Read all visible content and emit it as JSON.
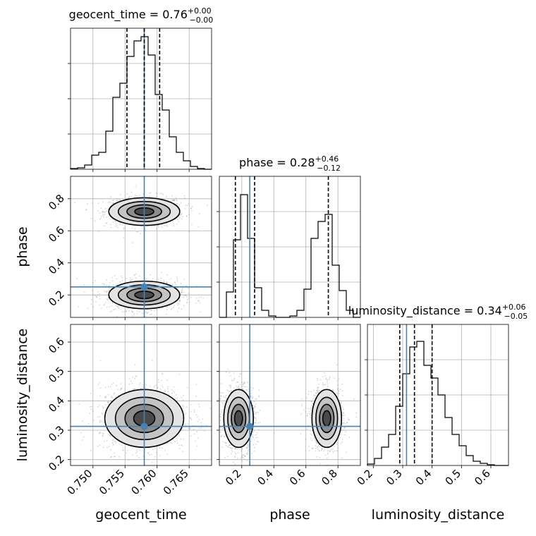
{
  "chart_data": {
    "type": "corner",
    "parameters": [
      {
        "name": "geocent_time",
        "axis_label": "geocent_time",
        "title": "geocent_time = 0.76",
        "median_str": "0.76",
        "err_plus": "+0.00",
        "err_minus": "−0.00",
        "range": [
          0.7465,
          0.7685
        ],
        "ticks": [
          0.75,
          0.755,
          0.76,
          0.765
        ],
        "tick_labels": [
          "0.750",
          "0.755",
          "0.760",
          "0.765"
        ],
        "truth": 0.758,
        "quantiles": [
          0.7553,
          0.758,
          0.7604
        ],
        "hist_heights": [
          0.005,
          0.01,
          0.03,
          0.1,
          0.12,
          0.27,
          0.51,
          0.61,
          0.8,
          0.91,
          0.94,
          0.81,
          0.53,
          0.42,
          0.23,
          0.12,
          0.06,
          0.02,
          0.005,
          0.0
        ]
      },
      {
        "name": "phase",
        "axis_label": "phase",
        "title": "phase = 0.28",
        "median_str": "0.28",
        "err_plus": "+0.46",
        "err_minus": "−0.12",
        "range": [
          0.06,
          0.94
        ],
        "ticks": [
          0.2,
          0.4,
          0.6,
          0.8
        ],
        "tick_labels": [
          "0.2",
          "0.4",
          "0.6",
          "0.8"
        ],
        "truth": 0.25,
        "quantiles": [
          0.16,
          0.28,
          0.74
        ],
        "hist_heights": [
          0.0,
          0.18,
          0.55,
          0.87,
          0.56,
          0.21,
          0.05,
          0.01,
          0.0,
          0.0,
          0.01,
          0.05,
          0.2,
          0.56,
          0.68,
          0.73,
          0.37,
          0.19,
          0.05,
          0.0
        ]
      },
      {
        "name": "luminosity_distance",
        "axis_label": "luminosity_distance",
        "title": "luminosity_distance = 0.34",
        "median_str": "0.34",
        "err_plus": "+0.06",
        "err_minus": "−0.05",
        "range": [
          0.18,
          0.66
        ],
        "ticks": [
          0.2,
          0.3,
          0.4,
          0.5,
          0.6
        ],
        "tick_labels": [
          "0.2",
          "0.3",
          "0.4",
          "0.5",
          "0.6"
        ],
        "truth": 0.313,
        "quantiles": [
          0.29,
          0.34,
          0.4
        ],
        "hist_heights": [
          0.01,
          0.05,
          0.13,
          0.22,
          0.42,
          0.65,
          0.84,
          0.88,
          0.71,
          0.62,
          0.5,
          0.34,
          0.22,
          0.14,
          0.07,
          0.03,
          0.015,
          0.005,
          0.0,
          0.0
        ]
      }
    ],
    "joint": [
      {
        "x": "geocent_time",
        "y": "phase",
        "modes": [
          {
            "cx": 0.758,
            "cy": 0.72,
            "sx": 0.0027,
            "sy": 0.042,
            "w": 0.6
          },
          {
            "cx": 0.758,
            "cy": 0.2,
            "sx": 0.0027,
            "sy": 0.042,
            "w": 0.75
          }
        ]
      },
      {
        "x": "geocent_time",
        "y": "luminosity_distance",
        "modes": [
          {
            "cx": 0.758,
            "cy": 0.34,
            "sx": 0.003,
            "sy": 0.048,
            "w": 1.0
          }
        ]
      },
      {
        "x": "phase",
        "y": "luminosity_distance",
        "modes": [
          {
            "cx": 0.18,
            "cy": 0.34,
            "sx": 0.045,
            "sy": 0.048,
            "w": 0.9
          },
          {
            "cx": 0.73,
            "cy": 0.34,
            "sx": 0.045,
            "sy": 0.048,
            "w": 0.7
          }
        ]
      }
    ],
    "colors": {
      "truth": "#4682b4",
      "contour": "#000000",
      "samples": "#8a8a8a",
      "grid": "#b0b0b0"
    }
  }
}
